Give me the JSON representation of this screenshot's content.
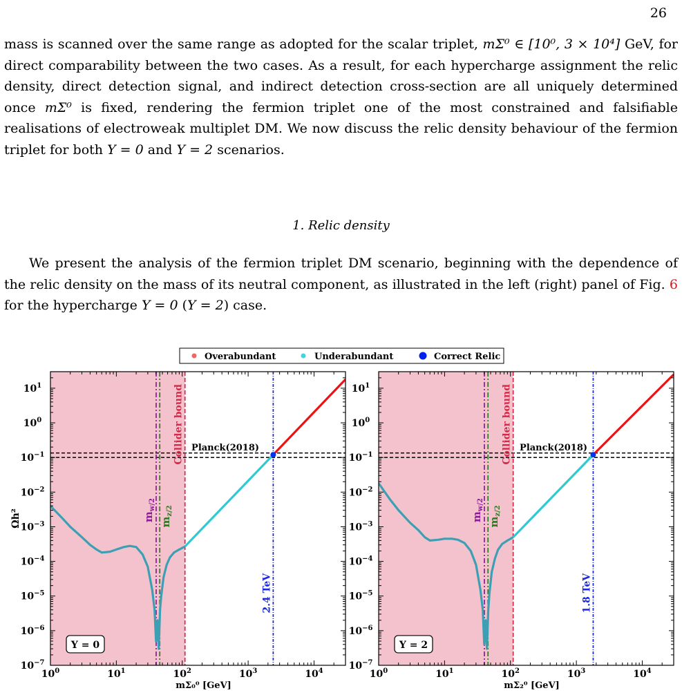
{
  "page": {
    "number": "26",
    "para1": [
      {
        "t": "mass is scanned over the same range as adopted for the scalar triplet, "
      },
      {
        "t": "mΣ⁰ ∈ [10⁰, 3 × 10⁴]",
        "i": true
      },
      {
        "t": " GeV, for direct comparability between the two cases. As a result, for each hypercharge assignment the relic density, direct detection signal, and indirect detection cross-section are all uniquely determined once "
      },
      {
        "t": "mΣ⁰",
        "i": true
      },
      {
        "t": " is fixed, rendering the fermion triplet one of the most constrained and falsifiable realisations of electroweak multiplet DM. We now discuss the relic density behaviour of the fermion triplet for both "
      },
      {
        "t": "Y = 0",
        "i": true
      },
      {
        "t": " and "
      },
      {
        "t": "Y = 2",
        "i": true
      },
      {
        "t": " scenarios."
      }
    ],
    "section_heading": "1.   Relic density",
    "para2": [
      {
        "t": "We present the analysis of the fermion triplet DM scenario, beginning with the dependence of the relic density on the mass of its neutral component, as illustrated in the left (right) panel of Fig. "
      },
      {
        "t": "6",
        "ref": true
      },
      {
        "t": " for the hypercharge "
      },
      {
        "t": "Y = 0",
        "i": true
      },
      {
        "t": " ("
      },
      {
        "t": "Y = 2",
        "i": true
      },
      {
        "t": ") case."
      }
    ]
  },
  "chart_data": [
    {
      "type": "line",
      "panel": "left",
      "xscale": "log",
      "yscale": "log",
      "xlim": [
        1,
        30000
      ],
      "ylim": [
        1e-07,
        30
      ],
      "xlabel": "mΣ₀⁰ [GeV]",
      "ylabel": "Ωh²",
      "x_ticks": [
        "10⁰",
        "10¹",
        "10²",
        "10³",
        "10⁴"
      ],
      "y_ticks": [
        "10⁻⁷",
        "10⁻⁶",
        "10⁻⁵",
        "10⁻⁴",
        "10⁻³",
        "10⁻²",
        "10⁻¹",
        "10⁰",
        "10¹"
      ],
      "annotation_box": "Y = 0",
      "shaded_region": {
        "x": [
          1,
          110
        ],
        "color": "#f4c2cc"
      },
      "vlines": [
        {
          "x": 40.2,
          "label": "mw/2",
          "color": "#8b1a9a"
        },
        {
          "x": 45.6,
          "label": "mz/2",
          "color": "#2a7a20"
        },
        {
          "x": 110,
          "label": "Collider bound",
          "color": "#d42a4a"
        },
        {
          "x": 2400,
          "label": "2.4 TeV",
          "color": "#1a28e0"
        }
      ],
      "hlines": [
        {
          "y": 0.12,
          "label": "Planck(2018)"
        }
      ],
      "series": [
        {
          "name": "Underabundant",
          "color": "#3d9fb3",
          "x": [
            1,
            1.5,
            2,
            3,
            4,
            5,
            6,
            8,
            10,
            13,
            16,
            20,
            25,
            30,
            35,
            38,
            40,
            42,
            44,
            46,
            48,
            52,
            58,
            65,
            75,
            90,
            110
          ],
          "y": [
            0.004,
            0.0018,
            0.001,
            0.0005,
            0.0003,
            0.00022,
            0.00018,
            0.00019,
            0.00022,
            0.00026,
            0.00028,
            0.00026,
            0.00016,
            7e-05,
            1.5e-05,
            4e-06,
            5e-07,
            2e-06,
            3e-07,
            4e-06,
            1e-05,
            3.5e-05,
            8e-05,
            0.00013,
            0.00018,
            0.00022,
            0.00027
          ]
        },
        {
          "name": "Underabundant",
          "color": "#2fc9d2",
          "x": [
            110,
            2400
          ],
          "y": [
            0.00027,
            0.12
          ]
        },
        {
          "name": "Overabundant",
          "color": "#ee1111",
          "x": [
            2400,
            30000
          ],
          "y": [
            0.12,
            18
          ]
        },
        {
          "name": "Correct Relic",
          "color": "#0033ee",
          "x": [
            2400
          ],
          "y": [
            0.12
          ]
        }
      ]
    },
    {
      "type": "line",
      "panel": "right",
      "xscale": "log",
      "yscale": "log",
      "xlim": [
        1,
        30000
      ],
      "ylim": [
        1e-07,
        30
      ],
      "xlabel": "mΣ₂⁰ [GeV]",
      "x_ticks": [
        "10⁰",
        "10¹",
        "10²",
        "10³",
        "10⁴"
      ],
      "y_ticks": [
        "10⁻⁷",
        "10⁻⁶",
        "10⁻⁵",
        "10⁻⁴",
        "10⁻³",
        "10⁻²",
        "10⁻¹",
        "10⁰",
        "10¹"
      ],
      "annotation_box": "Y = 2",
      "shaded_region": {
        "x": [
          1,
          110
        ],
        "color": "#f4c2cc"
      },
      "vlines": [
        {
          "x": 40.2,
          "label": "mw/2",
          "color": "#8b1a9a"
        },
        {
          "x": 45.6,
          "label": "mz/2",
          "color": "#2a7a20"
        },
        {
          "x": 110,
          "label": "Collider bound",
          "color": "#d42a4a"
        },
        {
          "x": 1800,
          "label": "1.8 TeV",
          "color": "#1a28e0"
        }
      ],
      "hlines": [
        {
          "y": 0.12,
          "label": "Planck(2018)"
        }
      ],
      "series": [
        {
          "name": "Underabundant",
          "color": "#3d9fb3",
          "x": [
            1,
            1.5,
            2,
            3,
            4,
            5,
            6,
            8,
            10,
            13,
            16,
            20,
            25,
            30,
            35,
            38,
            40,
            42,
            44,
            46,
            48,
            52,
            58,
            65,
            75,
            90,
            110
          ],
          "y": [
            0.018,
            0.006,
            0.003,
            0.0013,
            0.0008,
            0.0005,
            0.0004,
            0.00042,
            0.00045,
            0.00045,
            0.00042,
            0.00034,
            0.0002,
            8e-05,
            1.5e-05,
            4e-06,
            4e-07,
            2e-06,
            3e-07,
            4e-06,
            1.2e-05,
            5e-05,
            0.00012,
            0.00022,
            0.00032,
            0.0004,
            0.0005
          ]
        },
        {
          "name": "Underabundant",
          "color": "#2fc9d2",
          "x": [
            110,
            1800
          ],
          "y": [
            0.0005,
            0.12
          ]
        },
        {
          "name": "Overabundant",
          "color": "#ee1111",
          "x": [
            1800,
            30000
          ],
          "y": [
            0.12,
            25
          ]
        },
        {
          "name": "Correct Relic",
          "color": "#0033ee",
          "x": [
            1800
          ],
          "y": [
            0.12
          ]
        }
      ]
    }
  ],
  "legend": {
    "position": "top-center",
    "items": [
      {
        "label": "Overabundant",
        "color": "#ee6666",
        "size": 3.5
      },
      {
        "label": "Underabundant",
        "color": "#44d4dc",
        "size": 3.5
      },
      {
        "label": "Correct Relic",
        "color": "#0022ee",
        "size": 5.5
      }
    ]
  }
}
